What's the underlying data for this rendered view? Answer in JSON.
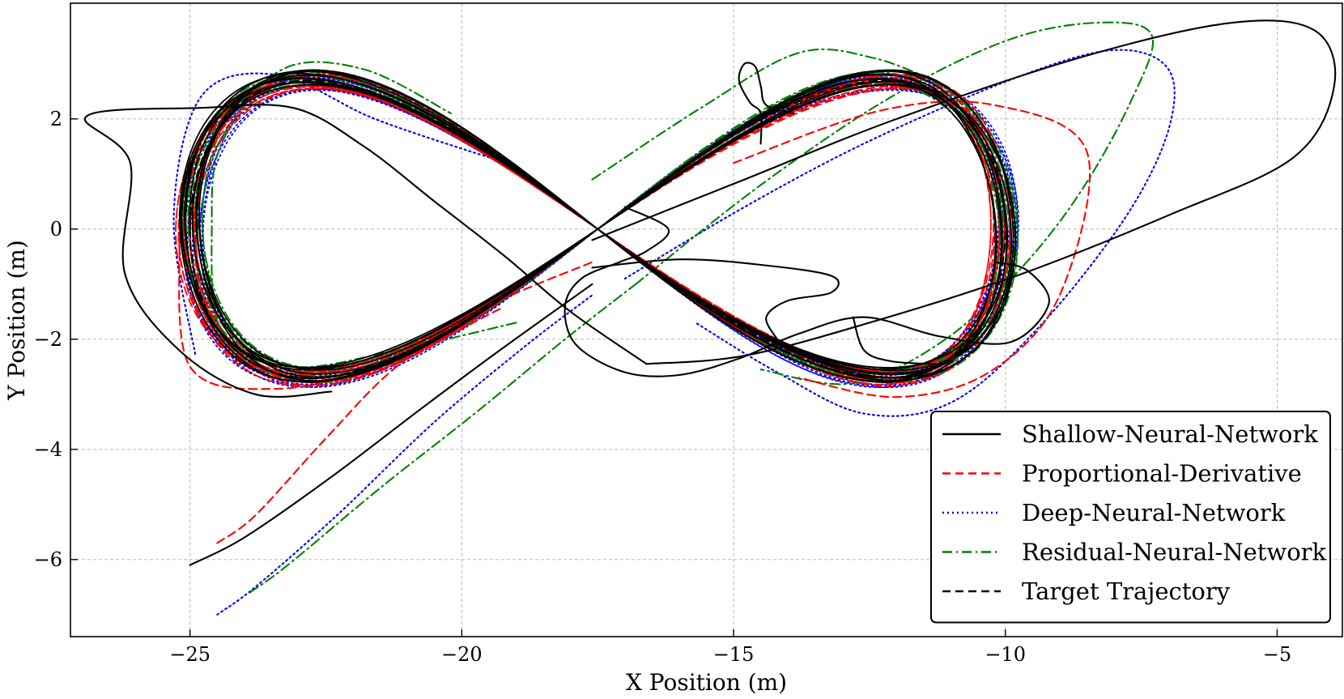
{
  "chart_data": {
    "type": "line",
    "title": "",
    "xlabel": "X Position (m)",
    "ylabel": "Y Position (m)",
    "xlim": [
      -27.2,
      -3.8
    ],
    "ylim": [
      -7.4,
      4.1
    ],
    "grid": true,
    "legend_position": "bottom-right",
    "x_ticks": [
      -25,
      -20,
      -15,
      -10,
      -5
    ],
    "x_tick_labels": [
      "−25",
      "−20",
      "−15",
      "−10",
      "−5"
    ],
    "y_ticks": [
      2,
      0,
      -2,
      -4,
      -6
    ],
    "y_tick_labels": [
      "2",
      "0",
      "−2",
      "−4",
      "−6"
    ],
    "series": [
      {
        "name": "Shallow-Neural-Network",
        "color": "#000000",
        "linestyle": "solid",
        "start": [
          -25.0,
          -6.1
        ],
        "approach": [
          [
            -25.0,
            -6.1
          ],
          [
            -24.0,
            -5.6
          ],
          [
            -22.4,
            -4.5
          ],
          [
            -20.8,
            -3.3
          ],
          [
            -19.3,
            -2.2
          ],
          [
            -17.6,
            -1.0
          ]
        ],
        "excursions": [
          [
            [
              -17.6,
              -0.7
            ],
            [
              -16.0,
              -0.55
            ],
            [
              -14.5,
              -0.65
            ],
            [
              -13.2,
              -0.85
            ],
            [
              -13.2,
              -1.15
            ],
            [
              -14.0,
              -1.3
            ],
            [
              -14.4,
              -1.6
            ],
            [
              -14.2,
              -2.0
            ]
          ],
          [
            [
              -17.0,
              0.4
            ],
            [
              -16.2,
              0.0
            ],
            [
              -16.6,
              -0.4
            ],
            [
              -17.1,
              -0.6
            ],
            [
              -17.8,
              -0.9
            ],
            [
              -18.1,
              -1.4
            ],
            [
              -17.9,
              -2.1
            ],
            [
              -17.0,
              -2.6
            ],
            [
              -16.0,
              -2.65
            ],
            [
              -14.9,
              -2.35
            ],
            [
              -13.8,
              -1.9
            ],
            [
              -12.6,
              -1.6
            ],
            [
              -11.2,
              -1.95
            ],
            [
              -9.9,
              -2.05
            ],
            [
              -9.2,
              -1.35
            ],
            [
              -9.6,
              -0.75
            ],
            [
              -10.2,
              -0.6
            ]
          ],
          [
            [
              -14.5,
              1.55
            ],
            [
              -14.5,
              2.1
            ],
            [
              -14.7,
              2.3
            ],
            [
              -14.9,
              2.7
            ],
            [
              -14.8,
              3.0
            ],
            [
              -14.6,
              2.95
            ],
            [
              -14.5,
              2.6
            ],
            [
              -14.4,
              2.25
            ],
            [
              -13.9,
              2.1
            ]
          ],
          [
            [
              -12.8,
              -1.6
            ],
            [
              -12.6,
              -2.2
            ],
            [
              -12.1,
              -2.4
            ],
            [
              -11.3,
              -2.45
            ]
          ]
        ],
        "big_loop": [
          [
            -17.6,
            -0.2
          ],
          [
            -14.8,
            0.9
          ],
          [
            -12.0,
            2.0
          ],
          [
            -8.5,
            3.15
          ],
          [
            -5.8,
            3.75
          ],
          [
            -4.3,
            3.6
          ],
          [
            -3.95,
            2.6
          ],
          [
            -4.7,
            1.3
          ],
          [
            -7.0,
            0.25
          ],
          [
            -9.8,
            -0.85
          ],
          [
            -12.5,
            -1.7
          ],
          [
            -14.8,
            -2.3
          ],
          [
            -16.6,
            -2.45
          ]
        ],
        "left_loop": [
          [
            -16.6,
            -2.45
          ],
          [
            -18.0,
            -1.5
          ],
          [
            -19.2,
            -0.5
          ],
          [
            -20.5,
            0.5
          ],
          [
            -21.8,
            1.5
          ],
          [
            -23.1,
            2.2
          ],
          [
            -24.8,
            2.2
          ],
          [
            -26.9,
            2.05
          ],
          [
            -26.1,
            1.2
          ],
          [
            -26.2,
            -0.8
          ],
          [
            -25.2,
            -2.2
          ],
          [
            -23.8,
            -3.0
          ],
          [
            -22.4,
            -2.95
          ]
        ]
      },
      {
        "name": "Proportional-Derivative",
        "color": "#ff0000",
        "linestyle": "dashed",
        "start": [
          -24.5,
          -5.7
        ],
        "approach": [
          [
            -24.5,
            -5.7
          ],
          [
            -23.8,
            -5.2
          ],
          [
            -22.5,
            -3.8
          ],
          [
            -21.2,
            -2.5
          ],
          [
            -19.5,
            -1.4
          ],
          [
            -17.6,
            -0.6
          ]
        ],
        "extra_loop": [
          [
            -15.0,
            1.2
          ],
          [
            -12.3,
            2.15
          ],
          [
            -10.2,
            2.25
          ],
          [
            -8.5,
            1.4
          ],
          [
            -9.0,
            -1.2
          ],
          [
            -10.3,
            -2.6
          ],
          [
            -12.0,
            -3.05
          ],
          [
            -13.8,
            -2.7
          ]
        ],
        "extra_loop_left": [
          [
            -19.3,
            -1.45
          ],
          [
            -21.4,
            -2.45
          ],
          [
            -23.4,
            -2.9
          ],
          [
            -25.0,
            -2.5
          ],
          [
            -25.2,
            -0.2
          ]
        ]
      },
      {
        "name": "Deep-Neural-Network",
        "color": "#0000ff",
        "linestyle": "dotted",
        "start": [
          -24.5,
          -7.0
        ],
        "approach": [
          [
            -24.5,
            -7.0
          ],
          [
            -23.8,
            -6.5
          ],
          [
            -22.3,
            -5.2
          ],
          [
            -20.5,
            -3.5
          ],
          [
            -18.8,
            -2.1
          ],
          [
            -17.6,
            -1.2
          ]
        ],
        "big_loop": [
          [
            -17.0,
            -0.9
          ],
          [
            -14.8,
            0.4
          ],
          [
            -12.5,
            1.6
          ],
          [
            -9.8,
            2.75
          ],
          [
            -8.0,
            3.25
          ],
          [
            -7.0,
            2.9
          ],
          [
            -7.0,
            1.8
          ],
          [
            -7.8,
            0.2
          ],
          [
            -9.4,
            -1.8
          ],
          [
            -11.0,
            -3.15
          ],
          [
            -12.6,
            -3.35
          ],
          [
            -14.2,
            -2.6
          ],
          [
            -15.7,
            -1.7
          ]
        ],
        "left_loop": [
          [
            -19.5,
            1.3
          ],
          [
            -21.6,
            2.0
          ],
          [
            -23.4,
            2.8
          ],
          [
            -24.8,
            2.4
          ],
          [
            -25.3,
            0.2
          ],
          [
            -24.9,
            -2.3
          ]
        ]
      },
      {
        "name": "Residual-Neural-Network",
        "color": "#008000",
        "linestyle": "dashdot",
        "start": [
          -23.9,
          -6.6
        ],
        "approach": [
          [
            -23.9,
            -6.6
          ],
          [
            -23.2,
            -6.1
          ],
          [
            -21.5,
            -4.7
          ],
          [
            -19.7,
            -3.3
          ],
          [
            -18.1,
            -2.0
          ],
          [
            -16.8,
            -1.0
          ]
        ],
        "big_loop": [
          [
            -16.8,
            -1.0
          ],
          [
            -14.5,
            0.8
          ],
          [
            -12.1,
            2.4
          ],
          [
            -9.9,
            3.45
          ],
          [
            -8.2,
            3.75
          ],
          [
            -7.3,
            3.5
          ],
          [
            -7.7,
            2.3
          ],
          [
            -8.6,
            0.7
          ],
          [
            -9.7,
            -0.7
          ],
          [
            -11.1,
            -2.0
          ],
          [
            -12.8,
            -2.8
          ],
          [
            -14.5,
            -2.55
          ]
        ],
        "left_loop": [
          [
            -19.0,
            -1.7
          ],
          [
            -21.2,
            -2.2
          ],
          [
            -23.1,
            -2.5
          ],
          [
            -24.4,
            -1.9
          ],
          [
            -24.6,
            0.1
          ],
          [
            -24.4,
            1.6
          ],
          [
            -23.3,
            2.9
          ],
          [
            -21.8,
            2.9
          ],
          [
            -20.2,
            2.1
          ]
        ],
        "upper_arc": [
          [
            -17.6,
            0.9
          ],
          [
            -15.6,
            2.2
          ],
          [
            -13.8,
            3.2
          ],
          [
            -12.4,
            3.1
          ],
          [
            -11.1,
            2.6
          ]
        ]
      },
      {
        "name": "Target Trajectory",
        "color": "#000000",
        "linestyle": "dashed",
        "shape": "figure-eight",
        "center": [
          -17.5,
          0.0
        ],
        "half_width": 7.5,
        "half_height": 2.7
      }
    ],
    "tracking_band": {
      "center": [
        -17.5,
        0.0
      ],
      "half_width": 7.5,
      "half_height": 2.7,
      "laps": 10
    }
  }
}
